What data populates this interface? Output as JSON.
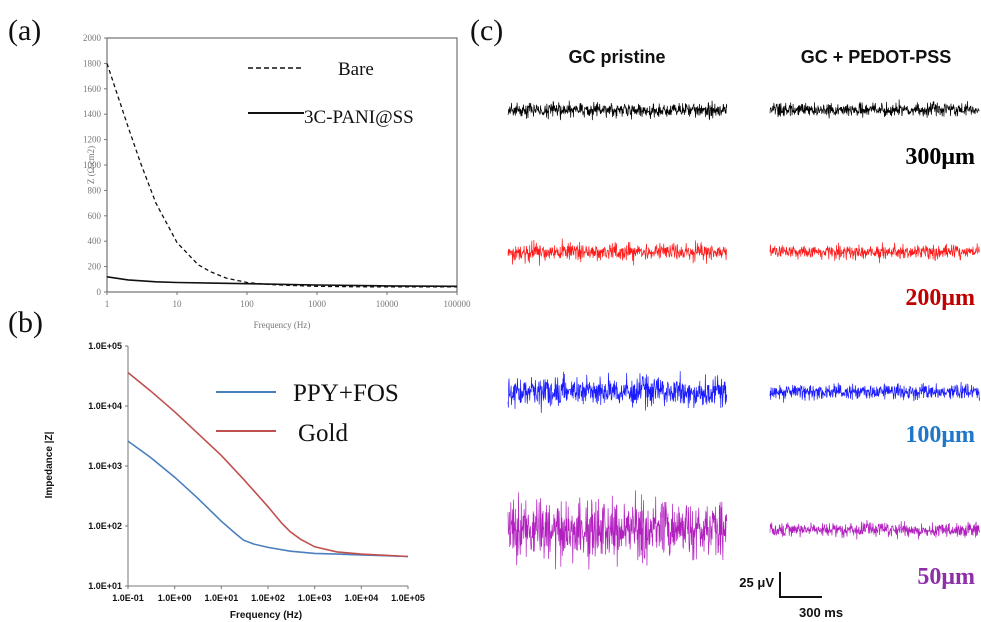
{
  "panel_labels": {
    "a": "(a)",
    "b": "(b)",
    "c": "(c)"
  },
  "chart_data": [
    {
      "id": "a",
      "type": "line",
      "xlabel": "Frequency (Hz)",
      "ylabel": "Z (Ω.cm2)",
      "x_scale": "log",
      "xlim": [
        1,
        100000
      ],
      "ylim": [
        0,
        2000
      ],
      "x_ticks": [
        "1",
        "10",
        "100",
        "1000",
        "10000",
        "100000"
      ],
      "y_ticks": [
        "0",
        "200",
        "400",
        "600",
        "800",
        "1000",
        "1200",
        "1400",
        "1600",
        "1800",
        "2000"
      ],
      "grid": false,
      "legend": "top-right",
      "series": [
        {
          "name": "Bare",
          "style": "dashed",
          "color": "#111111",
          "x": [
            1,
            2,
            3,
            5,
            10,
            20,
            30,
            50,
            100,
            200,
            300,
            500,
            1000,
            3000,
            10000,
            100000
          ],
          "y": [
            1800,
            1300,
            1020,
            700,
            390,
            215,
            160,
            110,
            75,
            60,
            55,
            50,
            45,
            42,
            40,
            40
          ]
        },
        {
          "name": "3C-PANI@SS",
          "style": "solid",
          "color": "#111111",
          "x": [
            1,
            2,
            5,
            10,
            30,
            100,
            1000,
            10000,
            100000
          ],
          "y": [
            120,
            95,
            80,
            75,
            70,
            65,
            55,
            48,
            45
          ]
        }
      ]
    },
    {
      "id": "b",
      "type": "line",
      "xlabel": "Frequency (Hz)",
      "ylabel": "Impedance |Z|",
      "x_scale": "log",
      "y_scale": "log",
      "xlim": [
        0.1,
        100000
      ],
      "ylim": [
        10,
        100000
      ],
      "x_ticks": [
        "1.0E-01",
        "1.0E+00",
        "1.0E+01",
        "1.0E+02",
        "1.0E+03",
        "1.0E+04",
        "1.0E+05"
      ],
      "y_ticks": [
        "1.0E+01",
        "1.0E+02",
        "1.0E+03",
        "1.0E+04",
        "1.0E+05"
      ],
      "grid": false,
      "legend": "top-right",
      "series": [
        {
          "name": "PPY+FOS",
          "color": "#4a7fbf",
          "x": [
            0.1,
            0.3,
            1,
            3,
            10,
            20,
            30,
            50,
            100,
            300,
            1000,
            3000,
            10000,
            100000
          ],
          "y": [
            2600,
            1400,
            650,
            300,
            120,
            75,
            58,
            50,
            44,
            38,
            35,
            34,
            33,
            31
          ]
        },
        {
          "name": "Gold",
          "color": "#c0504d",
          "x": [
            0.1,
            0.3,
            1,
            3,
            10,
            30,
            100,
            200,
            300,
            500,
            1000,
            3000,
            10000,
            100000
          ],
          "y": [
            36000,
            18000,
            8000,
            3600,
            1500,
            600,
            210,
            110,
            80,
            60,
            45,
            37,
            34,
            31
          ]
        }
      ]
    },
    {
      "id": "c",
      "type": "line",
      "columns": [
        "GC pristine",
        "GC + PEDOT-PSS"
      ],
      "rows": [
        {
          "label": "300μm",
          "color": "#000000",
          "label_color": "#000000",
          "amplitude": [
            1.0,
            0.9
          ]
        },
        {
          "label": "200μm",
          "color": "#ff1a1a",
          "label_color": "#c00000",
          "amplitude": [
            1.2,
            0.95
          ]
        },
        {
          "label": "100μm",
          "color": "#1a1aff",
          "label_color": "#1f77c9",
          "amplitude": [
            2.0,
            1.05
          ]
        },
        {
          "label": "50μm",
          "color": "#b21fbf",
          "label_color": "#8e2fa8",
          "amplitude": [
            4.0,
            1.0
          ]
        }
      ],
      "scale_bar": {
        "amplitude": "25 μV",
        "time": "300 ms"
      }
    }
  ]
}
